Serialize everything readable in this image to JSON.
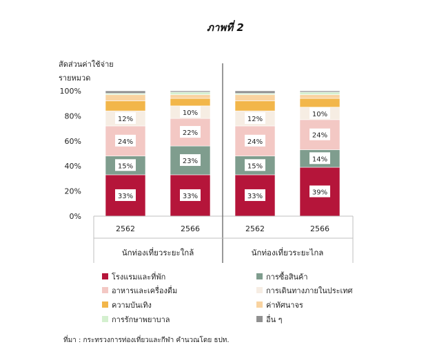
{
  "chart_data": {
    "type": "bar",
    "stacked": true,
    "title": "ภาพที่ 2",
    "ylabel_lines": [
      "สัดส่วนค่าใช้จ่าย",
      "รายหมวด"
    ],
    "ylim": [
      0,
      100
    ],
    "yticks": [
      "0%",
      "20%",
      "40%",
      "60%",
      "80%",
      "100%"
    ],
    "groups": [
      {
        "name": "นักท่องเที่ยวระยะใกล้",
        "categories": [
          "2562",
          "2566"
        ]
      },
      {
        "name": "นักท่องเที่ยวระยะไกล",
        "categories": [
          "2562",
          "2566"
        ]
      }
    ],
    "categories": [
      "2562",
      "2566",
      "2562",
      "2566"
    ],
    "series": [
      {
        "name": "โรงแรมและที่พัก",
        "color": "#b5153a",
        "values": [
          33,
          33,
          33,
          39
        ],
        "labels": [
          "33%",
          "33%",
          "33%",
          "39%"
        ]
      },
      {
        "name": "การซื้อสินค้า",
        "color": "#7f9d8e",
        "values": [
          15,
          23,
          15,
          14
        ],
        "labels": [
          "15%",
          "23%",
          "15%",
          "14%"
        ]
      },
      {
        "name": "อาหารและเครื่องดื่ม",
        "color": "#f3c8c4",
        "values": [
          24,
          22,
          24,
          24
        ],
        "labels": [
          "24%",
          "22%",
          "24%",
          "24%"
        ]
      },
      {
        "name": "การเดินทางภายในประเทศ",
        "color": "#f6ede3",
        "values": [
          12,
          10,
          12,
          10
        ],
        "labels": [
          "12%",
          "10%",
          "12%",
          "10%"
        ]
      },
      {
        "name": "ความบันเทิง",
        "color": "#f2b64a",
        "values": [
          8,
          6,
          8,
          7
        ],
        "labels": [
          "",
          "",
          "",
          ""
        ]
      },
      {
        "name": "ค่าทัศนาจร",
        "color": "#f9d3a0",
        "values": [
          5,
          3,
          5,
          3
        ],
        "labels": [
          "",
          "",
          "",
          ""
        ]
      },
      {
        "name": "การรักษาพยาบาล",
        "color": "#d4f0cf",
        "values": [
          1,
          2,
          1,
          2
        ],
        "labels": [
          "",
          "",
          "",
          ""
        ]
      },
      {
        "name": "อื่น ๆ",
        "color": "#909090",
        "values": [
          2,
          1,
          2,
          1
        ],
        "labels": [
          "",
          "",
          "",
          ""
        ]
      }
    ],
    "legend_position": "bottom",
    "source": "ที่มา : กระทรวงการท่องเที่ยวและกีฬา คำนวณโดย ธปท."
  }
}
